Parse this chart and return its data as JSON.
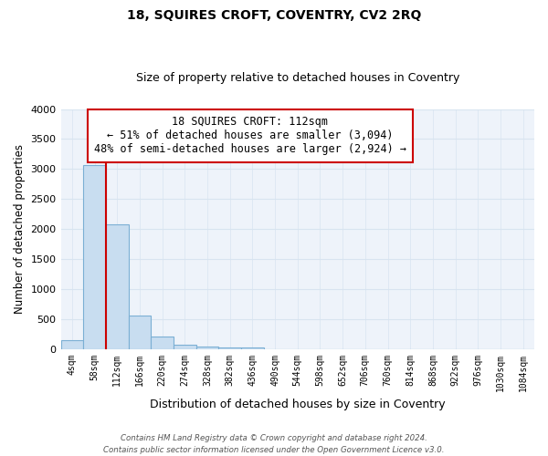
{
  "title": "18, SQUIRES CROFT, COVENTRY, CV2 2RQ",
  "subtitle": "Size of property relative to detached houses in Coventry",
  "xlabel": "Distribution of detached houses by size in Coventry",
  "ylabel": "Number of detached properties",
  "bar_labels": [
    "4sqm",
    "58sqm",
    "112sqm",
    "166sqm",
    "220sqm",
    "274sqm",
    "328sqm",
    "382sqm",
    "436sqm",
    "490sqm",
    "544sqm",
    "598sqm",
    "652sqm",
    "706sqm",
    "760sqm",
    "814sqm",
    "868sqm",
    "922sqm",
    "976sqm",
    "1030sqm",
    "1084sqm"
  ],
  "bar_values": [
    150,
    3060,
    2080,
    560,
    210,
    65,
    35,
    30,
    20,
    0,
    0,
    0,
    0,
    0,
    0,
    0,
    0,
    0,
    0,
    0,
    0
  ],
  "bar_color": "#c8ddf0",
  "bar_edge_color": "#7bafd4",
  "vline_x": 1.5,
  "vline_color": "#cc0000",
  "ylim": [
    0,
    4000
  ],
  "yticks": [
    0,
    500,
    1000,
    1500,
    2000,
    2500,
    3000,
    3500,
    4000
  ],
  "annotation_title": "18 SQUIRES CROFT: 112sqm",
  "annotation_line1": "← 51% of detached houses are smaller (3,094)",
  "annotation_line2": "48% of semi-detached houses are larger (2,924) →",
  "annotation_box_facecolor": "#ffffff",
  "annotation_box_edgecolor": "#cc0000",
  "grid_color": "#d8e4f0",
  "bg_color": "#ffffff",
  "axes_bg_color": "#eef3fa",
  "footer1": "Contains HM Land Registry data © Crown copyright and database right 2024.",
  "footer2": "Contains public sector information licensed under the Open Government Licence v3.0."
}
